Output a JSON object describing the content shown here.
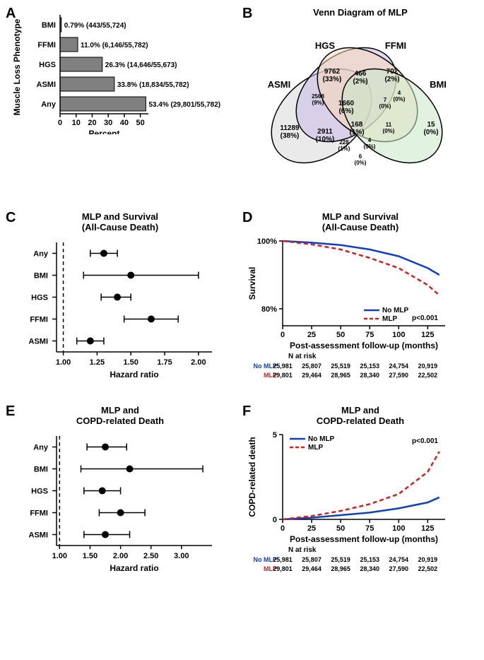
{
  "panelA": {
    "label": "A",
    "type": "bar",
    "ylabel": "Muscle Loss Phenotype",
    "xlabel": "Percent",
    "categories": [
      "BMI",
      "FFMI",
      "HGS",
      "ASMI",
      "Any"
    ],
    "values": [
      0.79,
      11.0,
      26.3,
      33.8,
      53.4
    ],
    "annotations": [
      "0.79% (443/55,724)",
      "11.0% (6,146/55,782)",
      "26.3% (14,646/55,673)",
      "33.8% (18,834/55,782)",
      "53.4% (29,801/55,782)"
    ],
    "bar_color": "#808080",
    "xlim": [
      0,
      55
    ],
    "xticks": [
      0,
      10,
      20,
      30,
      40,
      50
    ]
  },
  "panelB": {
    "label": "B",
    "title": "Venn Diagram of MLP",
    "sets": [
      "HGS",
      "FFMI",
      "ASMI",
      "BMI"
    ],
    "colors": {
      "HGS": "#c8b8e8",
      "FFMI": "#f8d8b8",
      "ASMI": "#d8d8d8",
      "BMI": "#c8e8c8"
    },
    "regions": {
      "hgs_only": {
        "n": "9762",
        "pct": "(33%)"
      },
      "ffmi_only": {
        "n": "702",
        "pct": "(2%)"
      },
      "asmi_only": {
        "n": "11289",
        "pct": "(38%)"
      },
      "bmi_only": {
        "n": "15",
        "pct": "(0%)"
      },
      "hgs_ffmi": {
        "n": "466",
        "pct": "(2%)"
      },
      "hgs_asmi": {
        "n": "2568",
        "pct": "(9%)"
      },
      "ffmi_bmi": {
        "n": "4",
        "pct": "(0%)"
      },
      "hgs_bmi": {
        "n": "7",
        "pct": "(0%)"
      },
      "asmi_ffmi": {
        "n": "2911",
        "pct": "(10%)"
      },
      "asmi_bmi": {
        "n": "6",
        "pct": "(0%)"
      },
      "hgs_ffmi_asmi": {
        "n": "1660",
        "pct": "(6%)"
      },
      "hgs_ffmi_bmi": {
        "n": "11",
        "pct": "(0%)"
      },
      "asmi_ffmi_bmi": {
        "n": "228",
        "pct": "(1%)"
      },
      "hgs_asmi_bmi": {
        "n": "4",
        "pct": "(0%)"
      },
      "all": {
        "n": "168",
        "pct": "(1%)"
      }
    }
  },
  "panelC": {
    "label": "C",
    "title1": "MLP and Survival",
    "title2": "(All-Cause Death)",
    "type": "forest",
    "xlabel": "Hazard ratio",
    "categories": [
      "Any",
      "BMI",
      "HGS",
      "FFMI",
      "ASMI"
    ],
    "hr": [
      1.3,
      1.5,
      1.4,
      1.65,
      1.2
    ],
    "ci_low": [
      1.2,
      1.15,
      1.28,
      1.45,
      1.1
    ],
    "ci_high": [
      1.4,
      2.0,
      1.5,
      1.85,
      1.3
    ],
    "xlim": [
      0.95,
      2.1
    ],
    "xticks": [
      1.0,
      1.25,
      1.5,
      1.75,
      2.0
    ],
    "ref_line": 1.0
  },
  "panelD": {
    "label": "D",
    "title1": "MLP and Survival",
    "title2": "(All-Cause Death)",
    "type": "survival",
    "ylabel": "Survival",
    "xlabel": "Post-assessment follow-up (months)",
    "legend": [
      "No MLP",
      "MLP"
    ],
    "colors": {
      "no_mlp": "#1040c0",
      "mlp": "#d02020"
    },
    "pvalue": "p<0.001",
    "ylim": [
      75,
      100
    ],
    "yticks": [
      80,
      100
    ],
    "xlim": [
      0,
      140
    ],
    "xticks": [
      0,
      25,
      50,
      75,
      100,
      125
    ],
    "risk_header": "N at risk",
    "risk_rows": [
      {
        "label": "No MLP",
        "color": "#1040c0",
        "values": [
          "25,981",
          "25,807",
          "25,519",
          "25,153",
          "24,754",
          "20,919"
        ]
      },
      {
        "label": "MLP",
        "color": "#d02020",
        "values": [
          "29,801",
          "29,464",
          "28,965",
          "28,340",
          "27,590",
          "22,502"
        ]
      }
    ],
    "series": {
      "no_mlp": [
        [
          0,
          100
        ],
        [
          25,
          99.5
        ],
        [
          50,
          98.8
        ],
        [
          75,
          97.5
        ],
        [
          100,
          95.5
        ],
        [
          125,
          92
        ],
        [
          135,
          90
        ]
      ],
      "mlp": [
        [
          0,
          100
        ],
        [
          25,
          99
        ],
        [
          50,
          97.5
        ],
        [
          75,
          95
        ],
        [
          100,
          92
        ],
        [
          125,
          87
        ],
        [
          135,
          84
        ]
      ]
    }
  },
  "panelE": {
    "label": "E",
    "title1": "MLP and",
    "title2": "COPD-related Death",
    "type": "forest",
    "xlabel": "Hazard ratio",
    "categories": [
      "Any",
      "BMI",
      "HGS",
      "FFMI",
      "ASMI"
    ],
    "hr": [
      1.75,
      2.15,
      1.7,
      2.0,
      1.75
    ],
    "ci_low": [
      1.45,
      1.35,
      1.4,
      1.65,
      1.4
    ],
    "ci_high": [
      2.1,
      3.35,
      2.0,
      2.4,
      2.15
    ],
    "xlim": [
      0.95,
      3.5
    ],
    "xticks": [
      1.0,
      1.5,
      2.0,
      2.5,
      3.0
    ],
    "ref_line": 1.0
  },
  "panelF": {
    "label": "F",
    "title1": "MLP and",
    "title2": "COPD-related Death",
    "type": "cumulative",
    "ylabel": "COPD-related death",
    "xlabel": "Post-assessment follow-up (months)",
    "legend": [
      "No MLP",
      "MLP"
    ],
    "colors": {
      "no_mlp": "#1040c0",
      "mlp": "#d02020"
    },
    "pvalue": "p<0.001",
    "ylim": [
      0,
      5
    ],
    "xlim": [
      0,
      140
    ],
    "xticks": [
      0,
      25,
      50,
      75,
      100,
      125
    ],
    "risk_header": "N at risk",
    "risk_rows": [
      {
        "label": "No MLP",
        "color": "#1040c0",
        "values": [
          "25,981",
          "25,807",
          "25,519",
          "25,153",
          "24,754",
          "20,919"
        ]
      },
      {
        "label": "MLP",
        "color": "#d02020",
        "values": [
          "29,801",
          "29,464",
          "28,965",
          "28,340",
          "27,590",
          "22,502"
        ]
      }
    ],
    "series": {
      "no_mlp": [
        [
          0,
          0
        ],
        [
          25,
          0.1
        ],
        [
          50,
          0.25
        ],
        [
          75,
          0.4
        ],
        [
          100,
          0.65
        ],
        [
          125,
          1.0
        ],
        [
          135,
          1.3
        ]
      ],
      "mlp": [
        [
          0,
          0
        ],
        [
          25,
          0.2
        ],
        [
          50,
          0.5
        ],
        [
          75,
          0.9
        ],
        [
          100,
          1.5
        ],
        [
          125,
          2.8
        ],
        [
          135,
          4.0
        ]
      ]
    }
  }
}
